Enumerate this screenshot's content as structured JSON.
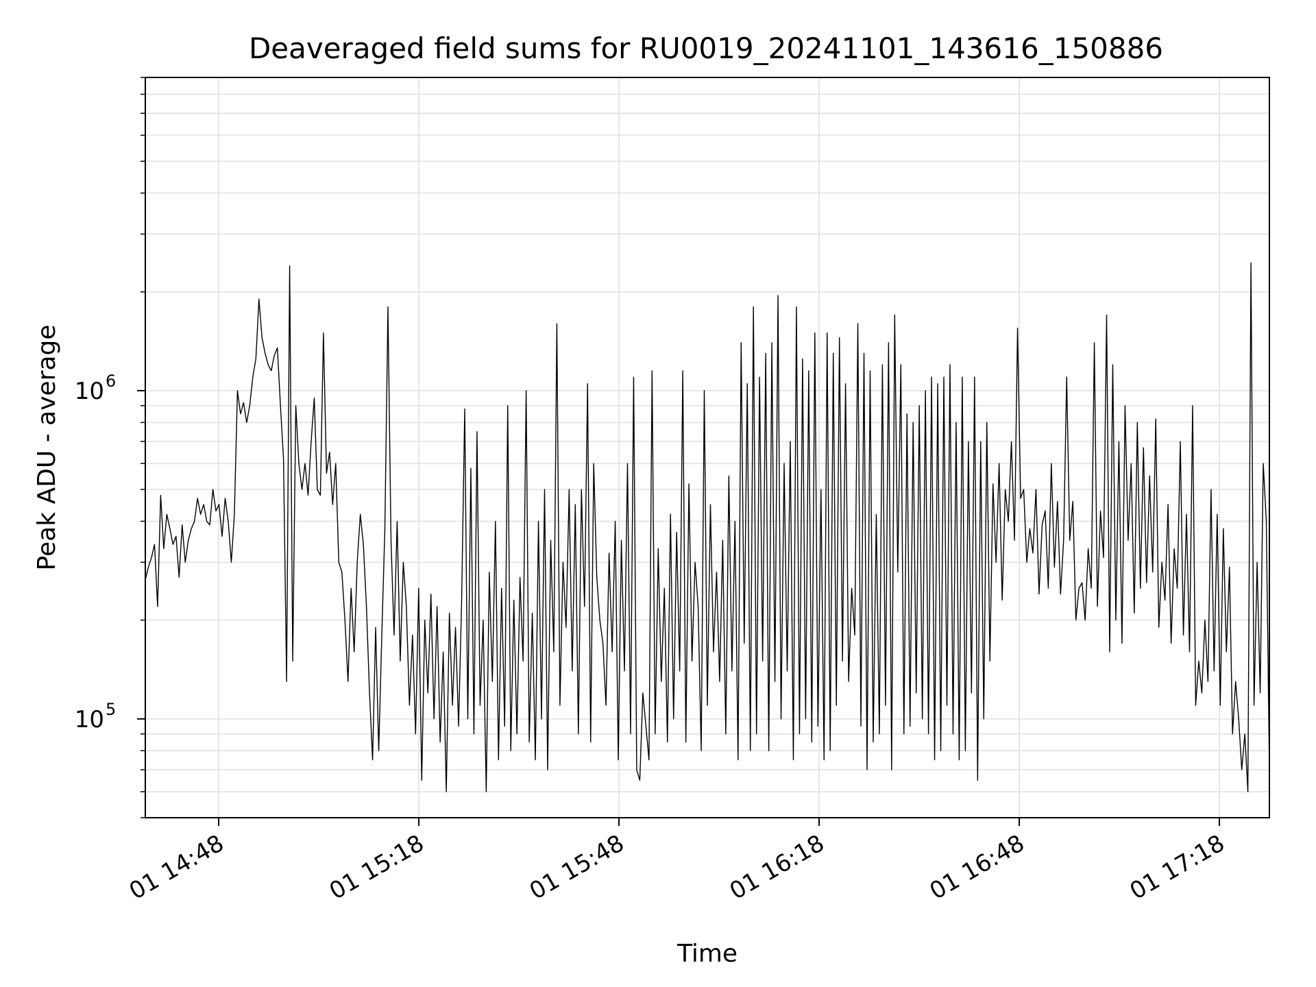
{
  "chart_data": {
    "type": "line",
    "title": "Deaveraged field sums for RU0019_20241101_143616_150886",
    "xlabel": "Time",
    "ylabel": "Peak ADU - average",
    "y_scale": "log",
    "ylim": [
      50000,
      9000000
    ],
    "grid": true,
    "legend": "none",
    "line_color": "#000000",
    "grid_color": "#e6e6e6",
    "x_range": [
      "14:37:00",
      "17:25:30"
    ],
    "x_ticks": [
      "14:48",
      "15:18",
      "15:48",
      "16:18",
      "16:48",
      "17:18"
    ],
    "x_tick_labels": [
      "01 14:48",
      "01 15:18",
      "01 15:48",
      "01 16:18",
      "01 16:48",
      "01 17:18"
    ],
    "y_ticks": [
      {
        "base": "10",
        "exp": "5",
        "value": 100000
      },
      {
        "base": "10",
        "exp": "6",
        "value": 1000000
      }
    ],
    "series": [
      {
        "x_start": "14:37:00",
        "x_end": "17:25:30",
        "values": [
          265000,
          290000,
          310000,
          340000,
          220000,
          480000,
          330000,
          420000,
          380000,
          340000,
          360000,
          270000,
          390000,
          300000,
          350000,
          380000,
          400000,
          470000,
          420000,
          450000,
          400000,
          390000,
          500000,
          430000,
          450000,
          360000,
          470000,
          400000,
          300000,
          420000,
          1000000,
          850000,
          920000,
          800000,
          900000,
          1100000,
          1250000,
          1900000,
          1450000,
          1300000,
          1200000,
          1150000,
          1280000,
          1350000,
          900000,
          620000,
          130000,
          2400000,
          150000,
          900000,
          600000,
          500000,
          600000,
          480000,
          700000,
          950000,
          500000,
          480000,
          1500000,
          560000,
          650000,
          450000,
          600000,
          300000,
          280000,
          200000,
          130000,
          250000,
          160000,
          300000,
          420000,
          340000,
          220000,
          120000,
          75000,
          190000,
          80000,
          180000,
          380000,
          1800000,
          350000,
          180000,
          400000,
          150000,
          300000,
          220000,
          110000,
          180000,
          90000,
          250000,
          65000,
          200000,
          120000,
          240000,
          100000,
          220000,
          85000,
          160000,
          60000,
          210000,
          110000,
          190000,
          95000,
          230000,
          880000,
          100000,
          580000,
          90000,
          750000,
          110000,
          200000,
          60000,
          280000,
          130000,
          400000,
          75000,
          250000,
          95000,
          900000,
          80000,
          230000,
          90000,
          270000,
          150000,
          1000000,
          85000,
          210000,
          75000,
          400000,
          100000,
          500000,
          70000,
          350000,
          160000,
          1600000,
          110000,
          300000,
          190000,
          500000,
          140000,
          450000,
          90000,
          500000,
          220000,
          1050000,
          85000,
          600000,
          270000,
          200000,
          170000,
          110000,
          320000,
          160000,
          400000,
          75000,
          350000,
          140000,
          600000,
          90000,
          1100000,
          70000,
          65000,
          120000,
          95000,
          75000,
          1150000,
          90000,
          330000,
          130000,
          250000,
          85000,
          420000,
          100000,
          370000,
          140000,
          1150000,
          85000,
          520000,
          150000,
          300000,
          220000,
          80000,
          1000000,
          110000,
          450000,
          160000,
          280000,
          130000,
          350000,
          90000,
          550000,
          140000,
          400000,
          75000,
          1400000,
          170000,
          1050000,
          80000,
          1800000,
          90000,
          1100000,
          150000,
          1300000,
          80000,
          1400000,
          130000,
          1950000,
          100000,
          600000,
          140000,
          700000,
          75000,
          1800000,
          90000,
          1250000,
          100000,
          1150000,
          85000,
          1500000,
          95000,
          500000,
          75000,
          1500000,
          80000,
          1300000,
          110000,
          1450000,
          150000,
          1050000,
          130000,
          250000,
          180000,
          1600000,
          95000,
          1300000,
          70000,
          1150000,
          85000,
          420000,
          90000,
          1200000,
          110000,
          1400000,
          70000,
          1700000,
          280000,
          1200000,
          90000,
          850000,
          95000,
          800000,
          120000,
          900000,
          100000,
          1000000,
          90000,
          1100000,
          75000,
          1050000,
          80000,
          1100000,
          110000,
          1200000,
          90000,
          800000,
          75000,
          1100000,
          80000,
          700000,
          120000,
          1100000,
          65000,
          700000,
          100000,
          800000,
          150000,
          520000,
          300000,
          600000,
          230000,
          500000,
          400000,
          700000,
          350000,
          1550000,
          470000,
          500000,
          300000,
          380000,
          320000,
          500000,
          240000,
          390000,
          430000,
          250000,
          600000,
          290000,
          460000,
          240000,
          350000,
          1100000,
          350000,
          460000,
          200000,
          250000,
          260000,
          200000,
          330000,
          250000,
          1400000,
          220000,
          430000,
          310000,
          1700000,
          160000,
          1200000,
          200000,
          700000,
          170000,
          900000,
          350000,
          600000,
          210000,
          800000,
          250000,
          670000,
          260000,
          550000,
          280000,
          820000,
          190000,
          300000,
          230000,
          450000,
          170000,
          330000,
          250000,
          700000,
          180000,
          420000,
          160000,
          900000,
          110000,
          150000,
          120000,
          200000,
          130000,
          500000,
          140000,
          420000,
          110000,
          380000,
          160000,
          290000,
          90000,
          130000,
          100000,
          70000,
          90000,
          60000,
          2450000,
          110000,
          300000,
          120000,
          600000,
          400000,
          70000
        ]
      }
    ]
  }
}
